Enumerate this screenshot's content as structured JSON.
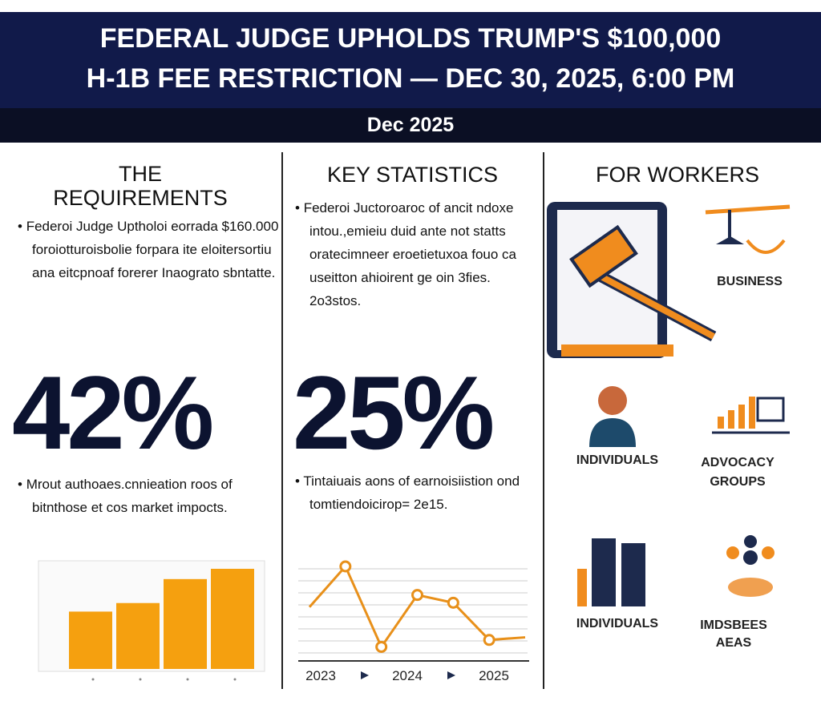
{
  "header": {
    "title_lines": [
      "FEDERAL JUDGE UPHOLDS TRUMP'S $100,000",
      "H-1B FEE RESTRICTION — DEC 30, 2025, 6:00 PM"
    ],
    "date": "Dec 2025"
  },
  "columns": [
    {
      "heading": "THE REQUIREMENTS",
      "bullet_top": "Federoi Judge Uptholoi eorrada $160.000 foroiotturoisbolie forpara ite eloitersortiu ana eitcpnoaf forerer Inaograto sbntatte.",
      "stat": "42%",
      "bullet_bottom": "Mrout authoaes.cnnieation roos of bitnthose et cos market impocts.",
      "bar_values": [
        67,
        77,
        105,
        117
      ]
    },
    {
      "heading": "KEY STATISTICS",
      "bullet_top": "Federoi Juctoroaroc of ancit ndoxe intou.,emieiu duid ante not statts oratecimneer eroetietuxoa fouo ca useitton ahioirent ge oin 3fies. 2o3stos.",
      "stat": "25%",
      "bullet_bottom": "Tintaiuais aons of earnoisiistion ond tomtiendoicirop= 2e15.",
      "line_values": [
        53,
        100,
        7,
        67,
        58,
        15,
        18
      ],
      "x_labels": [
        "2023",
        "2024",
        "2025"
      ]
    },
    {
      "heading": "FOR WORKERS",
      "labels": [
        "BUSINESS",
        "INDIVIDUALS",
        "ADVOCACY GROUPS",
        "INDIVIDUALS",
        "IMDSBEES AEAS"
      ]
    }
  ]
}
